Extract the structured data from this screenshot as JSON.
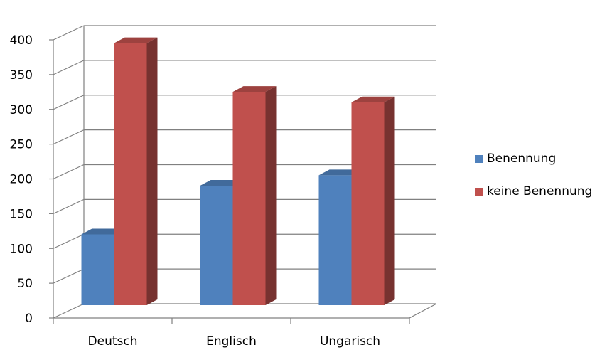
{
  "chart_data": {
    "type": "bar",
    "title": "",
    "xlabel": "",
    "ylabel": "",
    "categories": [
      "Deutsch",
      "Englisch",
      "Ungarisch"
    ],
    "series": [
      {
        "name": "Benennung",
        "values": [
          110,
          180,
          195
        ],
        "color": "#4F81BD"
      },
      {
        "name": "keine Benennung",
        "values": [
          385,
          315,
          300
        ],
        "color": "#C0504D"
      }
    ],
    "ylim": [
      0,
      400
    ],
    "yticks": [
      "0",
      "50",
      "100",
      "150",
      "200",
      "250",
      "300",
      "350",
      "400"
    ],
    "grid": true,
    "legend_position": "right",
    "style": "3d-clustered-column"
  }
}
